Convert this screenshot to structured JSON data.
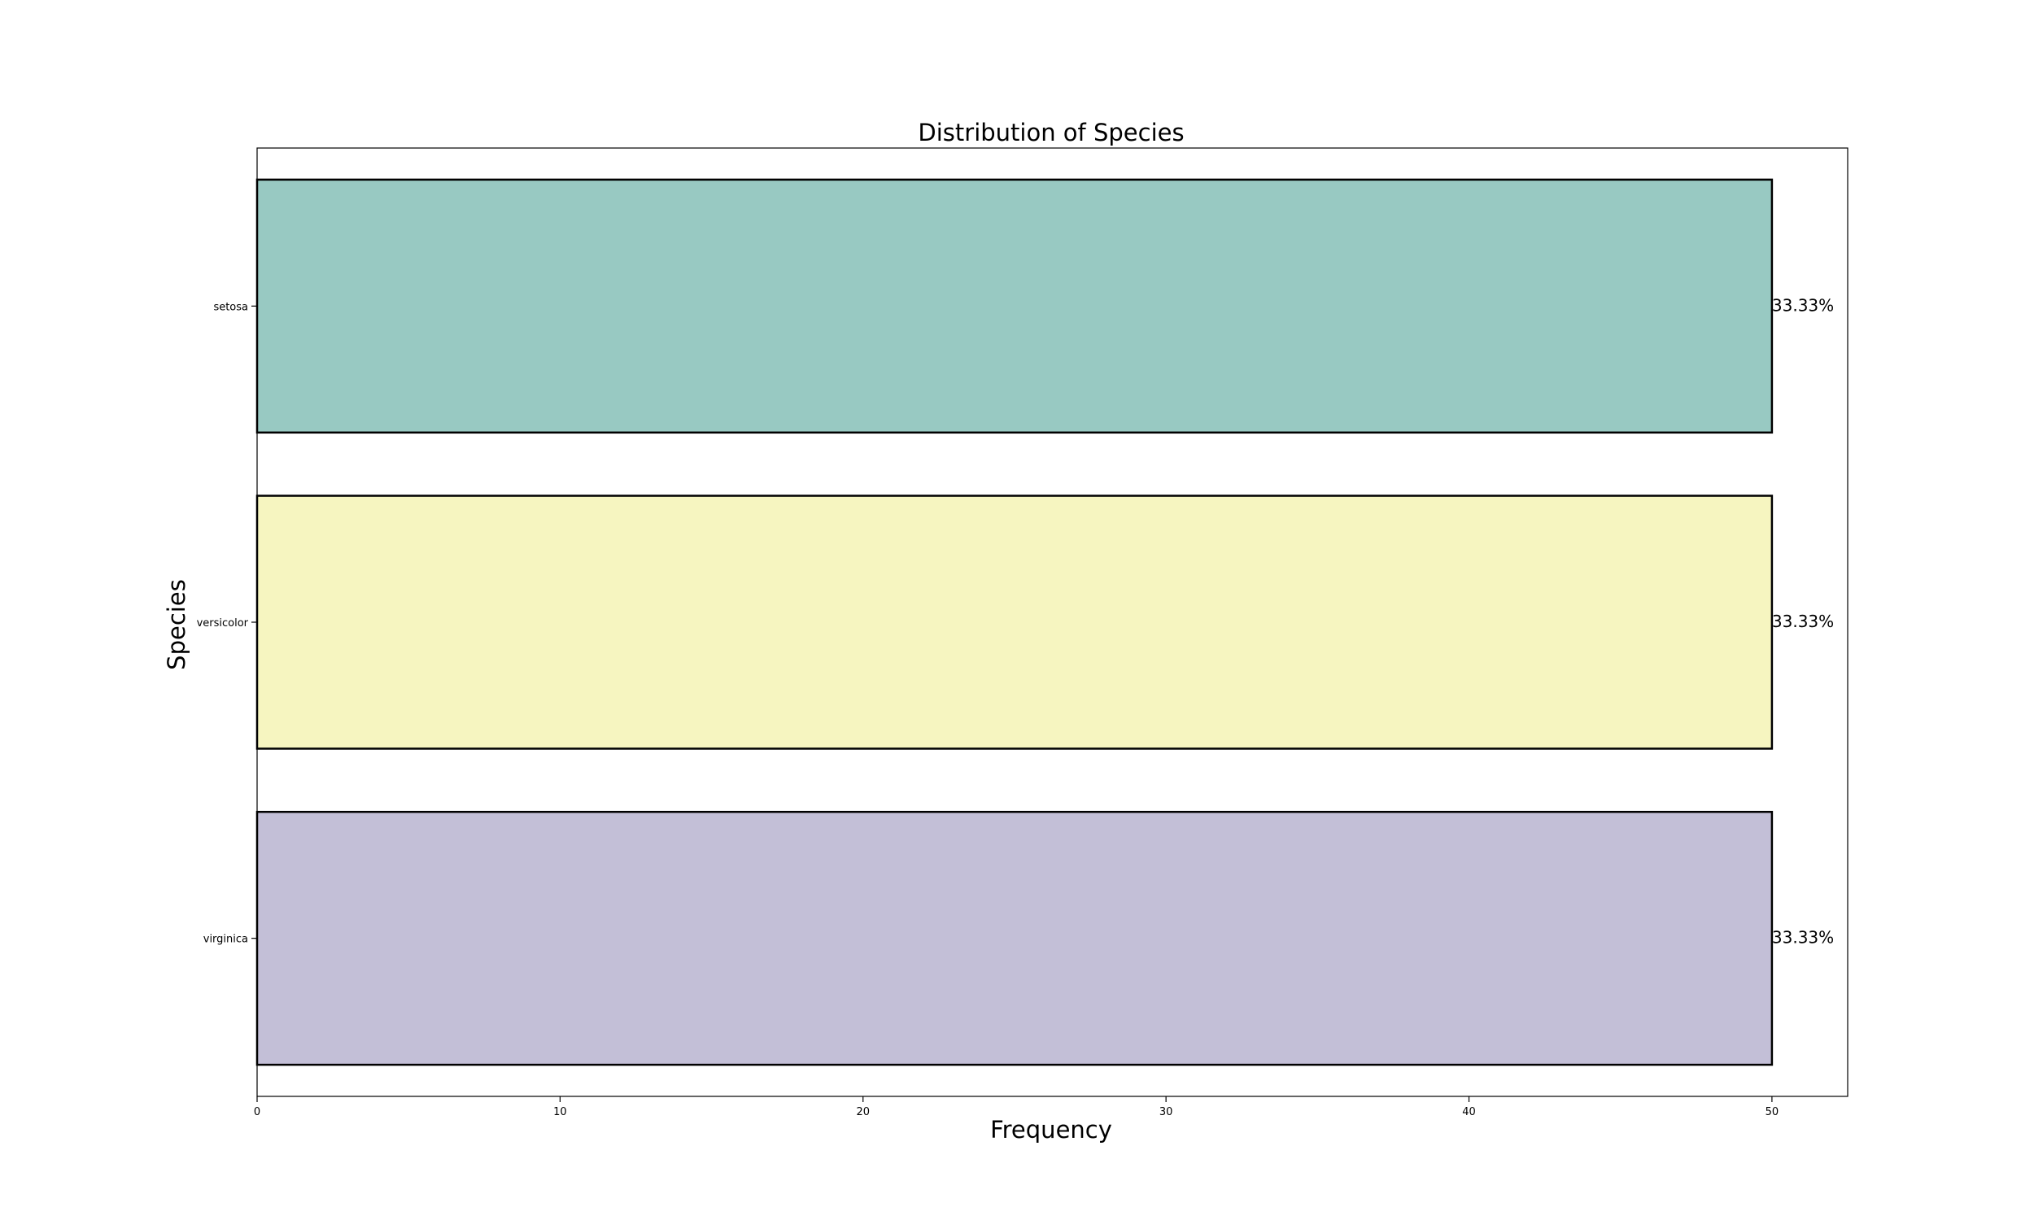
{
  "chart_data": {
    "type": "bar",
    "orientation": "horizontal",
    "title": "Distribution of Species",
    "xlabel": "Frequency",
    "ylabel": "Species",
    "categories": [
      "setosa",
      "versicolor",
      "virginica"
    ],
    "values": [
      50,
      50,
      50
    ],
    "data_labels": [
      "33.33%",
      "33.33%",
      "33.33%"
    ],
    "colors": [
      "#98c9c2",
      "#f6f5c0",
      "#c3bfd7"
    ],
    "edge_color": "#000000",
    "xlim": [
      0,
      52.5
    ],
    "x_ticks": [
      0,
      10,
      20,
      30,
      40,
      50
    ],
    "x_tick_labels": [
      "0",
      "10",
      "20",
      "30",
      "40",
      "50"
    ],
    "grid": false
  }
}
